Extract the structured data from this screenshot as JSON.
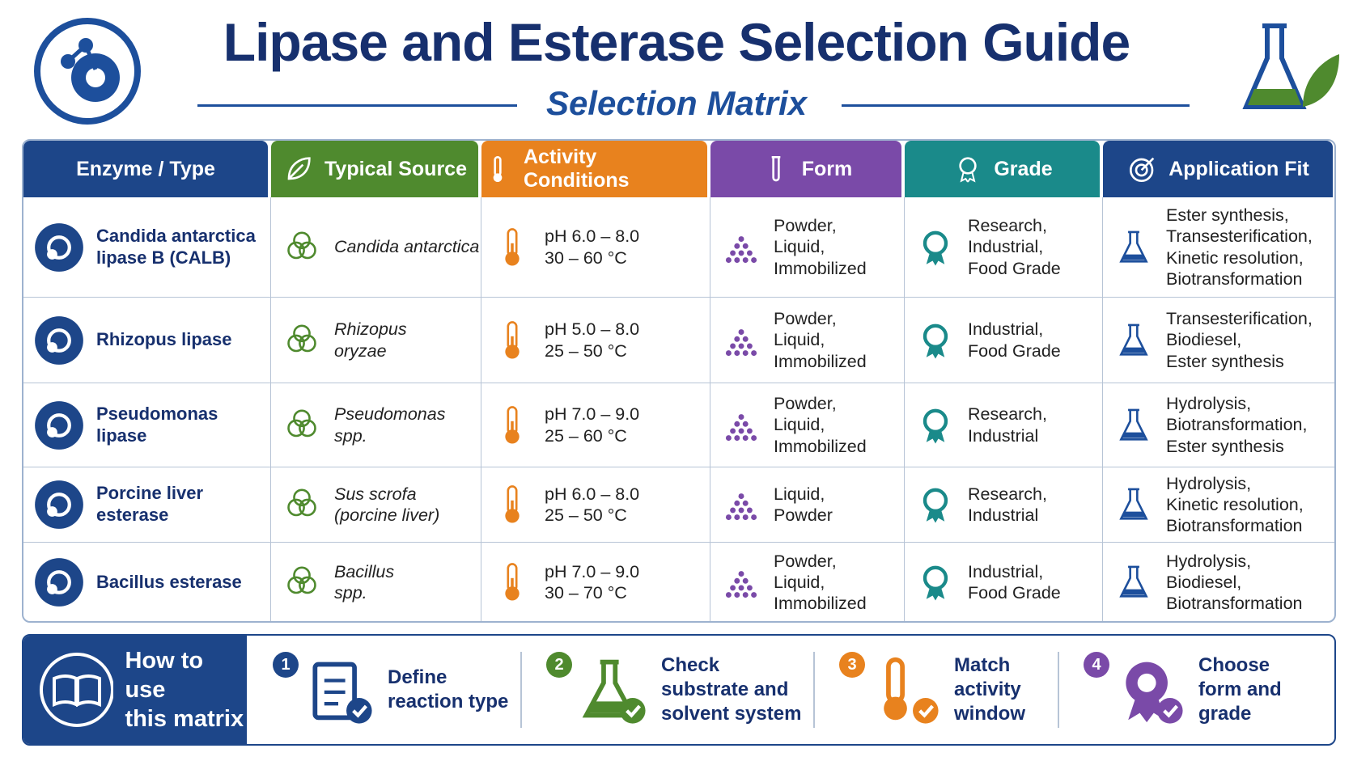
{
  "header": {
    "title": "Lipase and Esterase Selection Guide",
    "subtitle": "Selection Matrix"
  },
  "table": {
    "columns": [
      "Enzyme / Type",
      "Typical Source",
      "Activity Conditions",
      "Form",
      "Grade",
      "Application Fit"
    ],
    "rows": [
      [
        [
          "Candida antarctica",
          "lipase B (CALB)"
        ],
        [
          "Candida antarctica"
        ],
        [
          "pH 6.0 – 8.0",
          "30 – 60 °C"
        ],
        [
          "Powder,",
          "Liquid,",
          "Immobilized"
        ],
        [
          "Research,",
          "Industrial,",
          "Food Grade"
        ],
        [
          "Ester synthesis,",
          "Transesterification,",
          "Kinetic resolution,",
          "Biotransformation"
        ]
      ],
      [
        [
          "Rhizopus lipase"
        ],
        [
          "Rhizopus",
          "oryzae"
        ],
        [
          "pH 5.0 – 8.0",
          "25 – 50 °C"
        ],
        [
          "Powder,",
          "Liquid,",
          "Immobilized"
        ],
        [
          "Industrial,",
          "Food Grade"
        ],
        [
          "Transesterification,",
          "Biodiesel,",
          "Ester synthesis"
        ]
      ],
      [
        [
          "Pseudomonas lipase"
        ],
        [
          "Pseudomonas",
          "spp."
        ],
        [
          "pH 7.0 – 9.0",
          "25 – 60 °C"
        ],
        [
          "Powder,",
          "Liquid,",
          "Immobilized"
        ],
        [
          "Research,",
          "Industrial"
        ],
        [
          "Hydrolysis,",
          "Biotransformation,",
          "Ester synthesis"
        ]
      ],
      [
        [
          "Porcine liver esterase"
        ],
        [
          "Sus scrofa",
          "(porcine liver)"
        ],
        [
          "pH 6.0 – 8.0",
          "25 – 50 °C"
        ],
        [
          "Liquid,",
          "Powder"
        ],
        [
          "Research,",
          "Industrial"
        ],
        [
          "Hydrolysis,",
          "Kinetic resolution,",
          "Biotransformation"
        ]
      ],
      [
        [
          "Bacillus esterase"
        ],
        [
          "Bacillus",
          "spp."
        ],
        [
          "pH 7.0 – 9.0",
          "30 – 70 °C"
        ],
        [
          "Powder,",
          "Liquid,",
          "Immobilized"
        ],
        [
          "Industrial,",
          "Food Grade"
        ],
        [
          "Hydrolysis,",
          "Biodiesel,",
          "Biotransformation"
        ]
      ]
    ]
  },
  "footer": {
    "label": [
      "How to use",
      "this matrix"
    ],
    "steps": [
      {
        "number": 1,
        "text": [
          "Define",
          "reaction type"
        ]
      },
      {
        "number": 2,
        "text": [
          "Check",
          "substrate and",
          "solvent system"
        ]
      },
      {
        "number": 3,
        "text": [
          "Match",
          "activity",
          "window"
        ]
      },
      {
        "number": 4,
        "text": [
          "Choose",
          "form and",
          "grade"
        ]
      }
    ]
  }
}
